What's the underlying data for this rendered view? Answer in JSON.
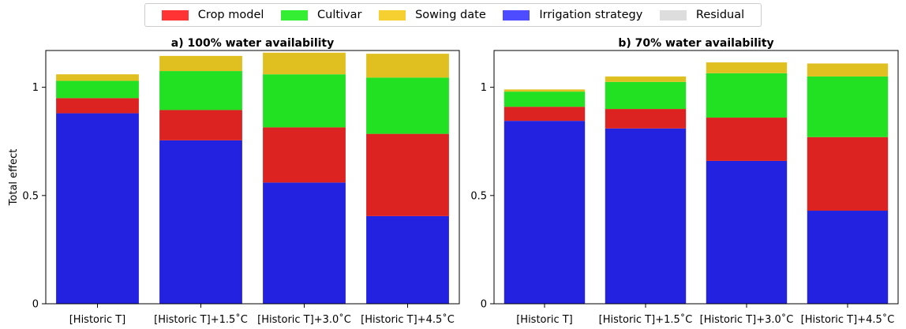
{
  "legend": {
    "items": [
      {
        "label": "Crop model",
        "color": "#ff3333"
      },
      {
        "label": "Cultivar",
        "color": "#33ee33"
      },
      {
        "label": "Sowing date",
        "color": "#f5d030"
      },
      {
        "label": "Irrigation strategy",
        "color": "#4d4dff"
      },
      {
        "label": "Residual",
        "color": "#dddddd"
      }
    ]
  },
  "chart_data": [
    {
      "type": "bar",
      "stacked": true,
      "title": "a) 100% water availability",
      "ylabel": "Total effect",
      "ylim": [
        0,
        1.17
      ],
      "yticks": [
        0,
        0.5,
        1
      ],
      "ytick_labels": [
        "0",
        "0.5",
        "1"
      ],
      "categories": [
        "[Historic T]",
        "[Historic T]+1.5$^\\circ$C",
        "[Historic T]+3.0$^\\circ$C",
        "[Historic T]+4.5$^\\circ$C"
      ],
      "category_labels": [
        "[Historic T]",
        "[Historic T]+1.5˚C",
        "[Historic T]+3.0˚C",
        "[Historic T]+4.5˚C"
      ],
      "series": [
        {
          "name": "Irrigation strategy",
          "color": "#2222e0",
          "values": [
            0.88,
            0.755,
            0.56,
            0.405
          ]
        },
        {
          "name": "Crop model",
          "color": "#dd2222",
          "values": [
            0.07,
            0.14,
            0.255,
            0.38
          ]
        },
        {
          "name": "Cultivar",
          "color": "#22e022",
          "values": [
            0.08,
            0.18,
            0.245,
            0.26
          ]
        },
        {
          "name": "Sowing date",
          "color": "#e0c020",
          "values": [
            0.03,
            0.07,
            0.1,
            0.11
          ]
        }
      ]
    },
    {
      "type": "bar",
      "stacked": true,
      "title": "b) 70%  water availability",
      "ylabel": "",
      "ylim": [
        0,
        1.17
      ],
      "yticks": [
        0,
        0.5,
        1
      ],
      "ytick_labels": [
        "0",
        "0.5",
        "1"
      ],
      "categories": [
        "[Historic T]",
        "[Historic T]+1.5$^\\circ$C",
        "[Historic T]+3.0$^\\circ$C",
        "[Historic T]+4.5$^\\circ$C"
      ],
      "category_labels": [
        "[Historic T]",
        "[Historic T]+1.5˚C",
        "[Historic T]+3.0˚C",
        "[Historic T]+4.5˚C"
      ],
      "series": [
        {
          "name": "Irrigation strategy",
          "color": "#2222e0",
          "values": [
            0.845,
            0.81,
            0.66,
            0.43
          ]
        },
        {
          "name": "Crop model",
          "color": "#dd2222",
          "values": [
            0.065,
            0.09,
            0.2,
            0.34
          ]
        },
        {
          "name": "Cultivar",
          "color": "#22e022",
          "values": [
            0.07,
            0.125,
            0.205,
            0.28
          ]
        },
        {
          "name": "Sowing date",
          "color": "#e0c020",
          "values": [
            0.01,
            0.025,
            0.05,
            0.06
          ]
        }
      ]
    }
  ]
}
